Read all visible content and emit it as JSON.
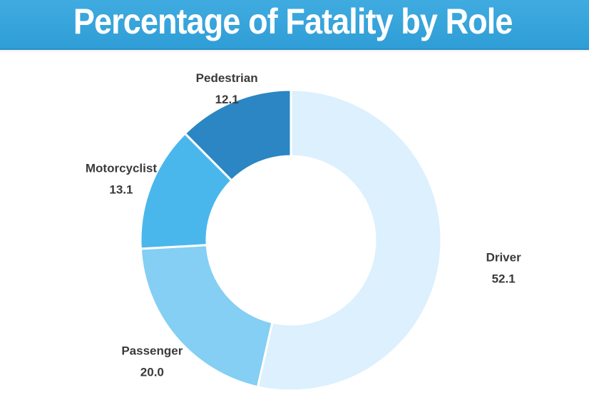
{
  "chart_data": {
    "type": "pie",
    "variant": "donut",
    "title": "Percentage of Fatality by Role",
    "categories": [
      "Driver",
      "Passenger",
      "Motorcyclist",
      "Pedestrian"
    ],
    "values": [
      52.1,
      20.0,
      13.1,
      12.1
    ],
    "value_labels": [
      "52.1",
      "20.0",
      "13.1",
      "12.1"
    ],
    "colors": [
      "#dcf0fd",
      "#84cff3",
      "#4ab7ec",
      "#2b86c3"
    ],
    "start_angle_deg": 0,
    "direction": "clockwise",
    "legend": "none"
  },
  "colors": {
    "title_bar": "#3aa6dc",
    "title_text": "#ffffff",
    "label_text": "#3a3a3a"
  }
}
